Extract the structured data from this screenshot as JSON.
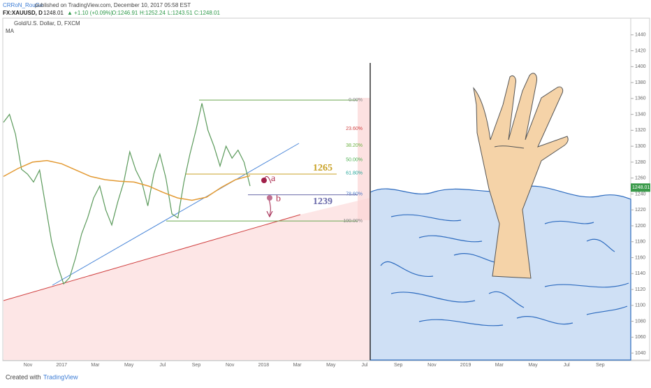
{
  "header": {
    "author": "CRRoN_RouGe",
    "published": "published on TradingView.com, December 10, 2017 05:58 EST",
    "symbol": "FX:XAUUSD, D",
    "price": "1248.01",
    "change": "▲ +1.10 (+0.09%)",
    "open": "O:1246.91",
    "high": "H:1252.24",
    "low": "L:1243.51",
    "close": "C:1248.01"
  },
  "chart_data": {
    "type": "line",
    "series": [
      {
        "name": "Gold/U.S. Dollar, D, FXCM",
        "color": "#5b9a5b",
        "values": [
          1330,
          1340,
          1315,
          1271,
          1265,
          1255,
          1270,
          1225,
          1180,
          1150,
          1127,
          1135,
          1160,
          1190,
          1210,
          1235,
          1250,
          1220,
          1201,
          1230,
          1255,
          1293,
          1270,
          1255,
          1225,
          1265,
          1290,
          1260,
          1215,
          1210,
          1255,
          1290,
          1320,
          1354,
          1320,
          1300,
          1275,
          1300,
          1285,
          1295,
          1280,
          1250
        ]
      },
      {
        "name": "MA",
        "color": "#e39a33",
        "values": [
          1262,
          1272,
          1280,
          1282,
          1278,
          1270,
          1262,
          1258,
          1256,
          1255,
          1250,
          1242,
          1235,
          1232,
          1236,
          1248,
          1258,
          1263
        ]
      }
    ],
    "ylim": [
      1031.3,
      1460.9
    ],
    "yticks": [
      1040,
      1060,
      1080,
      1100,
      1120,
      1140,
      1160,
      1180,
      1200,
      1220,
      1240,
      1260,
      1280,
      1300,
      1320,
      1340,
      1360,
      1380,
      1400,
      1420,
      1440
    ],
    "x_labels": [
      "Nov",
      "2017",
      "Mar",
      "May",
      "Jul",
      "Sep",
      "Nov",
      "2018",
      "Mar",
      "May",
      "Jul",
      "Sep",
      "Nov",
      "2019",
      "Mar",
      "May",
      "Jul",
      "Sep"
    ],
    "last_price": {
      "value": 1248.01,
      "label": "1248.01"
    },
    "fib_levels": [
      {
        "label": "0.00%",
        "price": 1358,
        "color": "#888888"
      },
      {
        "label": "23.60%",
        "price": 1322,
        "color": "#d04040"
      },
      {
        "label": "38.20%",
        "price": 1301,
        "color": "#6cb040"
      },
      {
        "label": "50.00%",
        "price": 1283,
        "color": "#4caf50"
      },
      {
        "label": "61.80%",
        "price": 1266,
        "color": "#26a69a"
      },
      {
        "label": "78.60%",
        "price": 1240,
        "color": "#4a78c8"
      },
      {
        "label": "100.00%",
        "price": 1206,
        "color": "#888888"
      }
    ],
    "levels": [
      {
        "value": 1265,
        "color": "#c9a227"
      },
      {
        "value": 1239,
        "color": "#6a6aaa"
      }
    ],
    "annotations": [
      "a",
      "b"
    ]
  },
  "footer": {
    "created": "Created with",
    "brand": "TradingView"
  }
}
